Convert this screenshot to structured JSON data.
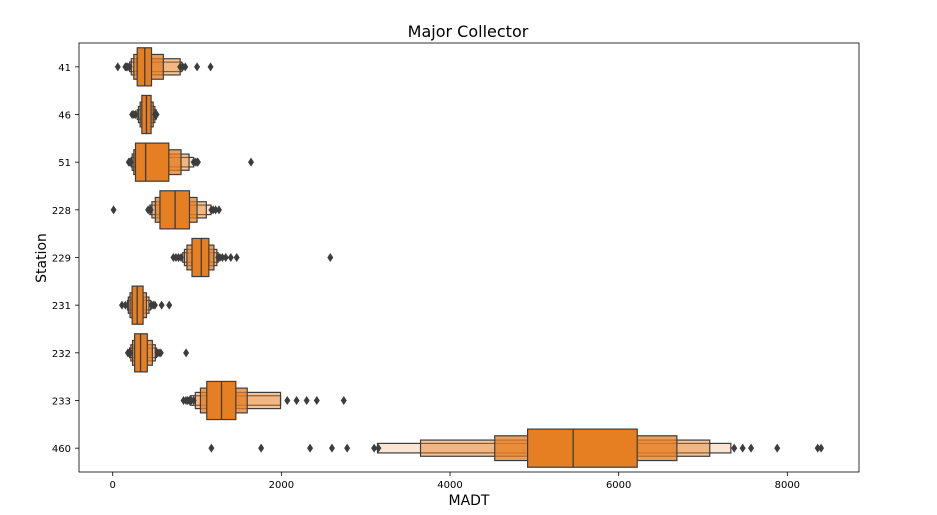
{
  "chart_data": {
    "type": "boxen",
    "orientation": "horizontal",
    "title": "Major Collector",
    "xlabel": "MADT",
    "ylabel": "Station",
    "xlim": [
      -400,
      8850
    ],
    "xticks": [
      0,
      2000,
      4000,
      6000,
      8000
    ],
    "grid": false,
    "legend": "none",
    "fill_color": "#e67e22",
    "edge_color": "#3d3d3d",
    "categories": [
      "41",
      "46",
      "51",
      "228",
      "229",
      "231",
      "232",
      "233",
      "460"
    ],
    "series": [
      {
        "category": "41",
        "median": 380,
        "boxes": [
          [
            290,
            460
          ],
          [
            250,
            600
          ],
          [
            220,
            800
          ],
          [
            200,
            820
          ]
        ],
        "outliers": [
          60,
          150,
          165,
          180,
          200,
          800,
          830,
          860,
          1000,
          1160
        ]
      },
      {
        "category": "46",
        "median": 400,
        "boxes": [
          [
            345,
            455
          ],
          [
            325,
            480
          ],
          [
            305,
            500
          ],
          [
            290,
            515
          ]
        ],
        "outliers": [
          230,
          250,
          270,
          500,
          510,
          520
        ]
      },
      {
        "category": "51",
        "median": 390,
        "boxes": [
          [
            270,
            665
          ],
          [
            250,
            810
          ],
          [
            230,
            905
          ],
          [
            220,
            960
          ]
        ],
        "outliers": [
          190,
          200,
          210,
          215,
          960,
          980,
          1000,
          1010,
          1640
        ]
      },
      {
        "category": "228",
        "median": 740,
        "boxes": [
          [
            560,
            910
          ],
          [
            505,
            1000
          ],
          [
            465,
            1110
          ],
          [
            440,
            1165
          ]
        ],
        "outliers": [
          10,
          420,
          450,
          1170,
          1190,
          1220,
          1260
        ]
      },
      {
        "category": "229",
        "median": 1050,
        "boxes": [
          [
            940,
            1140
          ],
          [
            880,
            1200
          ],
          [
            850,
            1235
          ],
          [
            830,
            1250
          ]
        ],
        "outliers": [
          720,
          750,
          780,
          810,
          1250,
          1270,
          1300,
          1340,
          1400,
          1470,
          2580
        ]
      },
      {
        "category": "231",
        "median": 290,
        "boxes": [
          [
            230,
            360
          ],
          [
            205,
            400
          ],
          [
            185,
            430
          ],
          [
            175,
            450
          ]
        ],
        "outliers": [
          110,
          150,
          460,
          480,
          500,
          580,
          670
        ]
      },
      {
        "category": "232",
        "median": 330,
        "boxes": [
          [
            260,
            410
          ],
          [
            235,
            470
          ],
          [
            215,
            505
          ],
          [
            200,
            520
          ]
        ],
        "outliers": [
          180,
          195,
          210,
          530,
          550,
          570,
          870
        ]
      },
      {
        "category": "233",
        "median": 1290,
        "boxes": [
          [
            1115,
            1460
          ],
          [
            1040,
            1595
          ],
          [
            980,
            1990
          ],
          [
            920,
            1990
          ]
        ],
        "outliers": [
          840,
          870,
          890,
          910,
          930,
          960,
          2070,
          2180,
          2300,
          2420,
          2740
        ]
      },
      {
        "category": "460",
        "median": 5460,
        "boxes": [
          [
            4920,
            6220
          ],
          [
            4530,
            6690
          ],
          [
            3650,
            7080
          ],
          [
            3140,
            7330
          ]
        ],
        "outliers": [
          1170,
          1760,
          2340,
          2600,
          2780,
          3100,
          3150,
          7370,
          7470,
          7570,
          7880,
          8360,
          8400
        ]
      }
    ]
  }
}
